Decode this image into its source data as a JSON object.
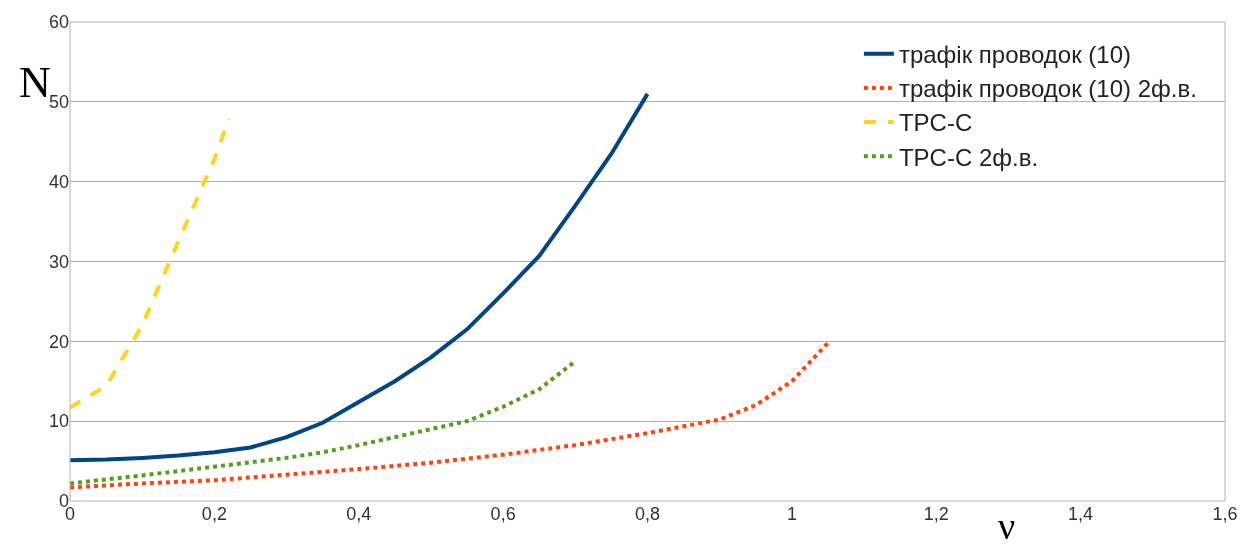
{
  "chart_data": {
    "type": "line",
    "xlabel": "ν",
    "ylabel": "N",
    "xlim": [
      0,
      1.6
    ],
    "ylim": [
      0,
      60
    ],
    "xticks": [
      0,
      {
        "value": 0.2,
        "label": "0,2"
      },
      {
        "value": 0.4,
        "label": "0,4"
      },
      {
        "value": 0.6,
        "label": "0,6"
      },
      {
        "value": 0.8,
        "label": "0,8"
      },
      1,
      {
        "value": 1.2,
        "label": "1,2"
      },
      {
        "value": 1.4,
        "label": "1,4"
      },
      {
        "value": 1.6,
        "label": "1,6"
      }
    ],
    "yticks": [
      0,
      10,
      20,
      30,
      40,
      50,
      60
    ],
    "grid": "y",
    "legend": "top right",
    "marker": "none",
    "series": [
      {
        "name": "трафік проводок (10)",
        "color": "#004586",
        "line_style": "solid",
        "x": [
          0,
          0.05,
          0.1,
          0.15,
          0.2,
          0.25,
          0.3,
          0.35,
          0.4,
          0.45,
          0.5,
          0.55,
          0.6,
          0.65,
          0.7,
          0.75,
          0.8
        ],
        "values": [
          5.1,
          5.2,
          5.4,
          5.7,
          6.1,
          6.7,
          8,
          9.8,
          12.4,
          15,
          18,
          21.5,
          26,
          30.7,
          37,
          43.5,
          51
        ]
      },
      {
        "name": "трафік проводок (10) 2ф.в.",
        "color": "#ff420e",
        "line_style": "dotted",
        "x": [
          0,
          0.1,
          0.2,
          0.3,
          0.4,
          0.5,
          0.6,
          0.7,
          0.8,
          0.9,
          0.95,
          1,
          1.05
        ],
        "values": [
          1.7,
          2.2,
          2.6,
          3.3,
          4,
          4.8,
          5.8,
          7,
          8.5,
          10.2,
          12,
          15,
          19.8
        ]
      },
      {
        "name": "TPC-C",
        "color": "#ffd320",
        "line_style": "dashed",
        "x": [
          0,
          0.05,
          0.1,
          0.15,
          0.2,
          0.22
        ],
        "values": [
          11.7,
          14.4,
          22,
          32.5,
          42.8,
          47.9
        ]
      },
      {
        "name": "TPC-C 2ф.в.",
        "color": "#579d1c",
        "line_style": "dotted",
        "x": [
          0,
          0.1,
          0.2,
          0.3,
          0.35,
          0.4,
          0.5,
          0.55,
          0.6,
          0.65,
          0.7
        ],
        "values": [
          2.2,
          3.2,
          4.3,
          5.4,
          6.1,
          7,
          9,
          10,
          11.8,
          14,
          17.5
        ]
      }
    ]
  }
}
